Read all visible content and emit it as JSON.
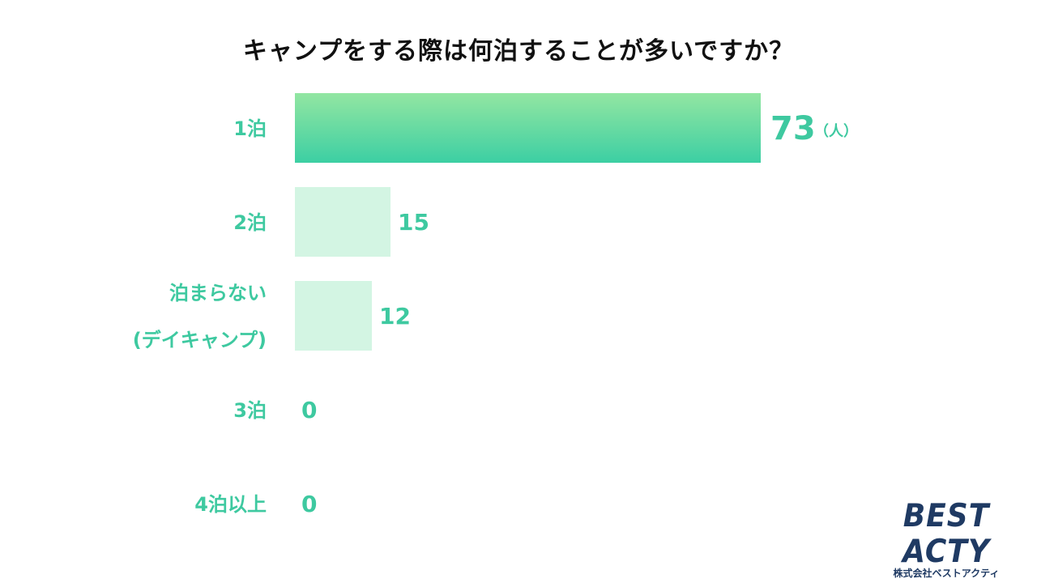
{
  "chart_data": {
    "type": "bar",
    "orientation": "horizontal",
    "title": "キャンプをする際は何泊することが多いですか？",
    "categories": [
      [
        "1泊"
      ],
      [
        "2泊"
      ],
      [
        "泊まらない",
        "(デイキャンプ)"
      ],
      [
        "3泊"
      ],
      [
        "4泊以上"
      ]
    ],
    "values": [
      73,
      15,
      12,
      0,
      0
    ],
    "unit": "（人）",
    "xlim": [
      0,
      73
    ],
    "grid": false,
    "legend": "none",
    "colors": {
      "label": "#3ec9a0",
      "highlight_top": "#93e6a2",
      "highlight_bottom": "#3ccfa3",
      "bar": "#d3f5e3"
    }
  },
  "logo": {
    "main": "BEST ACTY",
    "sub": "株式会社ベストアクティ",
    "color": "#1f3a63"
  }
}
